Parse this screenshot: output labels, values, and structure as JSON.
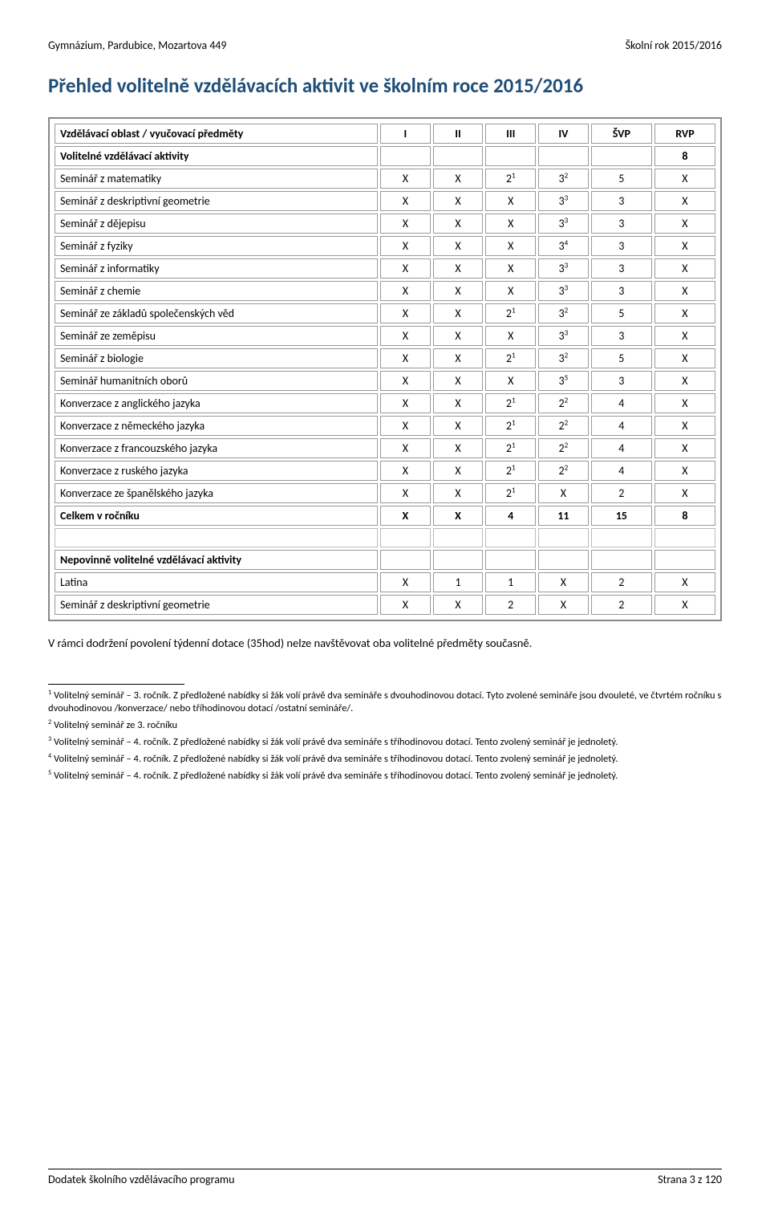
{
  "header": {
    "left": "Gymnázium, Pardubice, Mozartova 449",
    "right": "Školní rok 2015/2016"
  },
  "title": {
    "text": "Přehled volitelně vzdělávacích aktivit ve školním roce 2015/2016",
    "color": "#1f4e79"
  },
  "table": {
    "head": {
      "label": "Vzdělávací oblast / vyučovací předměty",
      "cols": [
        "I",
        "II",
        "III",
        "IV",
        "ŠVP",
        "RVP"
      ]
    },
    "rows": [
      {
        "label": "Volitelné vzdělávací aktivity",
        "cells": [
          "",
          "",
          "",
          "",
          "",
          "8"
        ],
        "bold": true
      },
      {
        "label": "Seminář z matematiky",
        "cells": [
          "X",
          "X",
          "2^1",
          "3^2",
          "5",
          "X"
        ]
      },
      {
        "label": "Seminář z deskriptivní geometrie",
        "cells": [
          "X",
          "X",
          "X",
          "3^3",
          "3",
          "X"
        ]
      },
      {
        "label": "Seminář z dějepisu",
        "cells": [
          "X",
          "X",
          "X",
          "3^3",
          "3",
          "X"
        ]
      },
      {
        "label": "Seminář z fyziky",
        "cells": [
          "X",
          "X",
          "X",
          "3^4",
          "3",
          "X"
        ]
      },
      {
        "label": "Seminář z informatiky",
        "cells": [
          "X",
          "X",
          "X",
          "3^3",
          "3",
          "X"
        ]
      },
      {
        "label": "Seminář z chemie",
        "cells": [
          "X",
          "X",
          "X",
          "3^3",
          "3",
          "X"
        ]
      },
      {
        "label": "Seminář ze základů společenských věd",
        "cells": [
          "X",
          "X",
          "2^1",
          "3^2",
          "5",
          "X"
        ]
      },
      {
        "label": "Seminář ze zeměpisu",
        "cells": [
          "X",
          "X",
          "X",
          "3^3",
          "3",
          "X"
        ]
      },
      {
        "label": "Seminář z biologie",
        "cells": [
          "X",
          "X",
          "2^1",
          "3^2",
          "5",
          "X"
        ]
      },
      {
        "label": "Seminář humanitních  oborů",
        "cells": [
          "X",
          "X",
          "X",
          "3^5",
          "3",
          "X"
        ]
      },
      {
        "label": "Konverzace z anglického jazyka",
        "cells": [
          "X",
          "X",
          "2^1",
          "2^2",
          "4",
          "X"
        ]
      },
      {
        "label": "Konverzace z německého jazyka",
        "cells": [
          "X",
          "X",
          "2^1",
          "2^2",
          "4",
          "X"
        ]
      },
      {
        "label": "Konverzace z francouzského jazyka",
        "cells": [
          "X",
          "X",
          "2^1",
          "2^2",
          "4",
          "X"
        ]
      },
      {
        "label": "Konverzace z ruského jazyka",
        "cells": [
          "X",
          "X",
          "2^1",
          "2^2",
          "4",
          "X"
        ]
      },
      {
        "label": "Konverzace ze španělského jazyka",
        "cells": [
          "X",
          "X",
          "2^1",
          "X",
          "2",
          "X"
        ]
      },
      {
        "label": "Celkem v ročníku",
        "cells": [
          "X",
          "X",
          "4",
          "11",
          "15",
          "8"
        ],
        "bold": true
      },
      {
        "label": "",
        "cells": [
          "",
          "",
          "",
          "",
          "",
          ""
        ],
        "blank": true
      },
      {
        "label": "Nepovinně volitelné vzdělávací aktivity",
        "cells": [
          "",
          "",
          "",
          "",
          "",
          ""
        ],
        "bold": true
      },
      {
        "label": "Latina",
        "cells": [
          "X",
          "1",
          "1",
          "X",
          "2",
          "X"
        ]
      },
      {
        "label": "Seminář z deskriptivní geometrie",
        "cells": [
          "X",
          "X",
          "2",
          "X",
          "2",
          "X"
        ]
      }
    ]
  },
  "body_text": "V rámci dodržení povolení týdenní dotace (35hod) nelze navštěvovat oba volitelné předměty současně.",
  "footnotes": [
    {
      "n": "1",
      "text": "Volitelný seminář – 3. ročník. Z předložené nabídky si žák volí právě dva semináře s dvouhodinovou dotací. Tyto zvolené semináře jsou dvouleté, ve čtvrtém ročníku s dvouhodinovou /konverzace/ nebo tříhodinovou dotací /ostatní semináře/."
    },
    {
      "n": "2",
      "text": "Volitelný seminář ze 3. ročníku"
    },
    {
      "n": "3",
      "text": "Volitelný seminář – 4. ročník. Z předložené nabídky si žák volí právě dva semináře s tříhodinovou dotací. Tento zvolený seminář je jednoletý."
    },
    {
      "n": "4",
      "text": "Volitelný seminář – 4. ročník. Z předložené nabídky si žák volí právě dva semináře s tříhodinovou dotací. Tento zvolený seminář je jednoletý."
    },
    {
      "n": "5",
      "text": "Volitelný seminář – 4. ročník. Z předložené nabídky si žák volí právě dva semináře s tříhodinovou dotací. Tento zvolený seminář je jednoletý."
    }
  ],
  "footer": {
    "left": "Dodatek školního vzdělávacího programu",
    "right": "Strana 3 z 120"
  }
}
